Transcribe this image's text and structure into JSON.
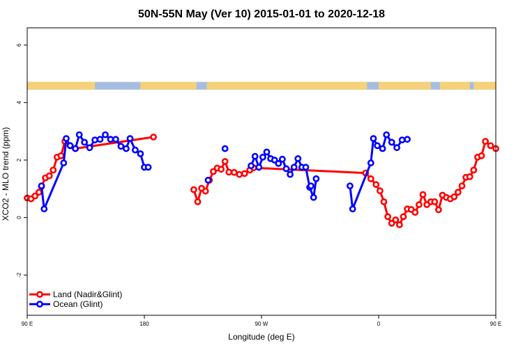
{
  "chart_data": {
    "type": "line",
    "title": "50N-55N May (Ver 10)   2015-01-01 to 2020-12-18",
    "xlabel": "Longitude (deg E)",
    "ylabel": "XCO2 - MLO trend (ppm)",
    "xlim": [
      90,
      450
    ],
    "ylim": [
      -3.4,
      6.6
    ],
    "x_ticks": [
      {
        "value": 90,
        "label": "90 E"
      },
      {
        "value": 180,
        "label": "180"
      },
      {
        "value": 270,
        "label": "90 W"
      },
      {
        "value": 360,
        "label": "0"
      },
      {
        "value": 450,
        "label": "90 E"
      },
      {
        "value": 540,
        "label": "180"
      }
    ],
    "y_ticks": [
      {
        "value": -2,
        "label": "-2"
      },
      {
        "value": 0,
        "label": "0"
      },
      {
        "value": 2,
        "label": "2"
      },
      {
        "value": 4,
        "label": "4"
      },
      {
        "value": 6,
        "label": "6"
      }
    ],
    "grid": false,
    "legend_position": "bottom-left",
    "landmask": {
      "colors": {
        "land": "#f5d27a",
        "ocean": "#a7bde0"
      },
      "y_range": [
        4.45,
        4.72
      ],
      "land_ranges": [
        [
          90,
          142
        ],
        [
          177,
          220
        ],
        [
          228,
          351
        ],
        [
          360,
          400
        ],
        [
          407,
          430
        ],
        [
          433,
          508
        ],
        [
          516,
          540
        ]
      ]
    },
    "series": [
      {
        "name": "Land (Nadir&Glint)",
        "color": "#ff0000",
        "points": [
          [
            90,
            0.68
          ],
          [
            93,
            0.65
          ],
          [
            96,
            0.75
          ],
          [
            99,
            0.88
          ],
          [
            101,
            1.08
          ],
          [
            104,
            1.38
          ],
          [
            107,
            1.45
          ],
          [
            110,
            1.65
          ],
          [
            113,
            2.1
          ],
          [
            116,
            2.15
          ],
          [
            119,
            2.65
          ],
          [
            123,
            2.5
          ],
          [
            127,
            2.4
          ],
          [
            187,
            2.8
          ],
          null,
          [
            218,
            0.97
          ],
          [
            221,
            0.55
          ],
          [
            224,
            1.02
          ],
          [
            227,
            0.92
          ],
          [
            230,
            1.3
          ],
          [
            233,
            1.6
          ],
          [
            236,
            1.72
          ],
          [
            239,
            1.68
          ],
          [
            242,
            1.95
          ],
          [
            245,
            1.58
          ],
          [
            249,
            1.57
          ],
          [
            253,
            1.5
          ],
          [
            257,
            1.53
          ],
          [
            261,
            1.65
          ],
          [
            264,
            1.73
          ],
          [
            350,
            1.55
          ],
          [
            354,
            1.35
          ],
          [
            358,
            1.15
          ],
          [
            361,
            0.93
          ],
          [
            364,
            0.55
          ],
          [
            367,
            0.03
          ],
          [
            370,
            -0.2
          ],
          [
            373,
            -0.08
          ],
          [
            376,
            -0.25
          ],
          [
            379,
            0.03
          ],
          [
            382,
            0.3
          ],
          [
            385,
            0.28
          ],
          [
            388,
            0.18
          ],
          [
            391,
            0.45
          ],
          [
            394,
            0.8
          ],
          [
            397,
            0.45
          ],
          [
            400,
            0.55
          ],
          [
            403,
            0.55
          ],
          [
            406,
            0.27
          ],
          [
            409,
            0.78
          ],
          [
            412,
            0.7
          ],
          [
            415,
            0.65
          ],
          [
            418,
            0.72
          ],
          [
            421,
            0.88
          ],
          [
            424,
            1.1
          ],
          [
            427,
            1.4
          ],
          [
            430,
            1.42
          ],
          [
            433,
            1.65
          ],
          [
            436,
            2.1
          ],
          [
            439,
            2.15
          ],
          [
            442,
            2.65
          ],
          [
            446,
            2.5
          ],
          [
            450,
            2.4
          ]
        ]
      },
      {
        "name": "Ocean (Glint)",
        "color": "#0000ff",
        "points": [
          [
            101,
            1.1
          ],
          [
            103,
            0.3
          ],
          [
            118,
            1.9
          ],
          [
            120,
            2.75
          ],
          [
            123,
            2.5
          ],
          [
            127,
            2.4
          ],
          [
            130,
            2.88
          ],
          [
            134,
            2.62
          ],
          [
            138,
            2.43
          ],
          [
            142,
            2.7
          ],
          [
            146,
            2.72
          ],
          [
            150,
            2.88
          ],
          [
            154,
            2.72
          ],
          [
            158,
            2.72
          ],
          [
            162,
            2.48
          ],
          [
            166,
            2.4
          ],
          [
            169,
            2.75
          ],
          [
            173,
            2.35
          ],
          [
            177,
            2.22
          ],
          [
            180,
            1.75
          ],
          [
            183,
            1.75
          ],
          null,
          [
            229,
            1.3
          ],
          null,
          [
            242,
            2.4
          ],
          null,
          [
            262,
            1.8
          ],
          [
            265,
            2.13
          ],
          [
            268,
            1.75
          ],
          [
            271,
            2.1
          ],
          [
            274,
            2.28
          ],
          [
            277,
            2.05
          ],
          [
            280,
            2.0
          ],
          [
            283,
            1.88
          ],
          [
            286,
            2.03
          ],
          [
            289,
            1.7
          ],
          [
            292,
            1.5
          ],
          [
            295,
            1.75
          ],
          [
            298,
            2.05
          ],
          [
            301,
            1.75
          ],
          [
            304,
            1.75
          ],
          [
            307,
            1.05
          ],
          [
            310,
            0.7
          ],
          [
            312,
            1.35
          ],
          null,
          [
            308,
            1.1
          ],
          null,
          [
            338,
            1.1
          ],
          [
            340,
            0.3
          ],
          [
            354,
            1.9
          ],
          [
            356,
            2.75
          ],
          [
            359,
            2.5
          ],
          [
            363,
            2.4
          ],
          [
            366,
            2.88
          ],
          [
            370,
            2.62
          ],
          [
            374,
            2.43
          ],
          [
            378,
            2.7
          ],
          [
            382,
            2.72
          ]
        ]
      }
    ]
  }
}
